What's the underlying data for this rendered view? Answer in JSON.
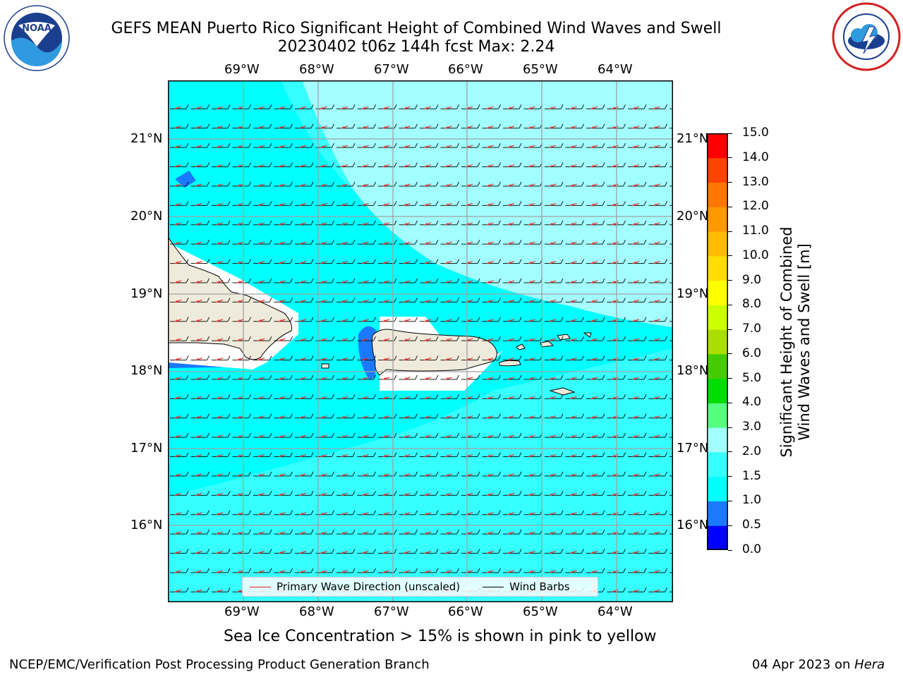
{
  "header": {
    "title_line1": "GEFS MEAN Puerto Rico Significant Height of Combined Wind Waves and Swell",
    "title_line2": "20230402 t06z 144h fcst   Max: 2.24",
    "left_logo": "noara-logo",
    "right_logo": "nws-logo"
  },
  "map": {
    "lon_labels": [
      "69°W",
      "68°W",
      "67°W",
      "66°W",
      "65°W",
      "64°W"
    ],
    "lat_labels": [
      "21°N",
      "20°N",
      "19°N",
      "18°N",
      "17°N",
      "16°N"
    ],
    "land_color": "#efebdc",
    "colors": {
      "band_1_0_1_5": "#00ffff",
      "band_1_5_2_0": "#36ffff",
      "band_2_0_3_0": "#a3ffff",
      "band_0_5_1_0": "#1a7aff"
    },
    "wave_arrow_color": "#e8231c",
    "wind_barb_color": "#000000"
  },
  "legend": {
    "wave_label": "Primary Wave Direction (unscaled)",
    "barb_label": "Wind Barbs"
  },
  "colorbar": {
    "label_line1": "Significant Height of Combined",
    "label_line2": "Wind Waves and Swell [m]",
    "ticks": [
      "0.0",
      "0.5",
      "1.0",
      "1.5",
      "2.0",
      "3.0",
      "4.0",
      "5.0",
      "6.0",
      "7.0",
      "8.0",
      "9.0",
      "10.0",
      "11.0",
      "12.0",
      "13.0",
      "14.0",
      "15.0"
    ],
    "colors": [
      "#0000ff",
      "#1a7aff",
      "#00ffff",
      "#36ffff",
      "#a3ffff",
      "#55ff80",
      "#00dd00",
      "#44cc00",
      "#aadd00",
      "#ccff00",
      "#ffff00",
      "#ffdd00",
      "#ffbb00",
      "#ff9900",
      "#ff7700",
      "#ff4400",
      "#ff0000"
    ]
  },
  "subtitle": "Sea Ice Concentration > 15% is shown in pink to yellow",
  "footer": {
    "left": "NCEP/EMC/Verification Post Processing Product Generation Branch",
    "right_date": "04 Apr 2023 on ",
    "right_host": "Hera"
  }
}
